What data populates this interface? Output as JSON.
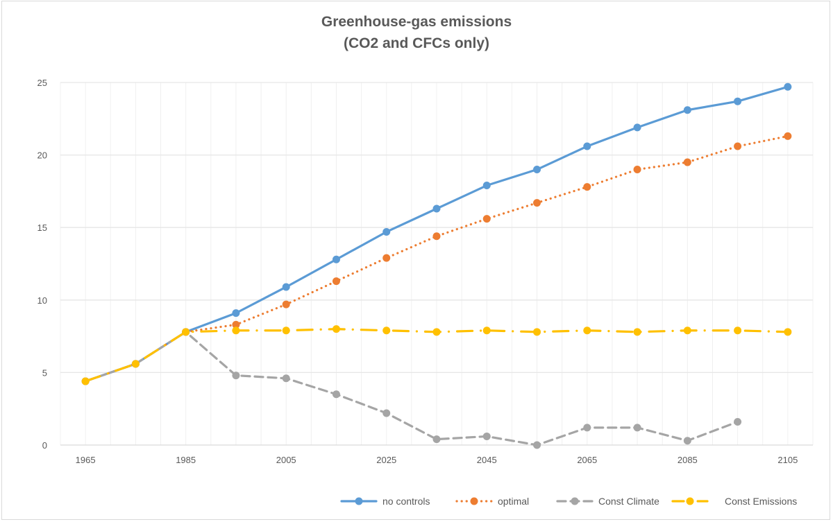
{
  "chart_data": {
    "type": "line",
    "title": "Greenhouse-gas emissions",
    "subtitle": "(CO2 and CFCs only)",
    "xlabel": "",
    "ylabel": "",
    "categories": [
      "1965",
      "1975",
      "1985",
      "1995",
      "2005",
      "2015",
      "2025",
      "2035",
      "2045",
      "2055",
      "2065",
      "2075",
      "2085",
      "2095",
      "2105"
    ],
    "x_tick_labels": [
      "1965",
      "",
      "1985",
      "",
      "2005",
      "",
      "2025",
      "",
      "2045",
      "",
      "2065",
      "",
      "2085",
      "",
      "2105"
    ],
    "y_ticks": [
      0,
      5,
      10,
      15,
      20,
      25
    ],
    "ylim": [
      0,
      25
    ],
    "grid": "both",
    "legend_position": "bottom-right",
    "series": [
      {
        "name": "no controls",
        "color": "#5B9BD5",
        "style": "solid",
        "values": [
          4.4,
          5.6,
          7.8,
          9.1,
          10.9,
          12.8,
          14.7,
          16.3,
          17.9,
          19.0,
          20.6,
          21.9,
          23.1,
          23.7,
          24.7
        ]
      },
      {
        "name": "optimal",
        "color": "#ED7D31",
        "style": "dotted",
        "values": [
          4.4,
          5.6,
          7.8,
          8.3,
          9.7,
          11.3,
          12.9,
          14.4,
          15.6,
          16.7,
          17.8,
          19.0,
          19.5,
          20.6,
          21.3
        ]
      },
      {
        "name": "Const Climate",
        "color": "#A5A5A5",
        "style": "dashed",
        "values": [
          4.4,
          5.6,
          7.8,
          4.8,
          4.6,
          3.5,
          2.2,
          0.4,
          0.6,
          0.0,
          1.2,
          1.2,
          0.3,
          1.6,
          null
        ]
      },
      {
        "name": "Const Emissions",
        "color": "#FFC000",
        "style": "dash-dot",
        "values": [
          4.4,
          5.6,
          7.8,
          7.9,
          7.9,
          8.0,
          7.9,
          7.8,
          7.9,
          7.8,
          7.9,
          7.8,
          7.9,
          7.9,
          7.8
        ]
      }
    ]
  }
}
